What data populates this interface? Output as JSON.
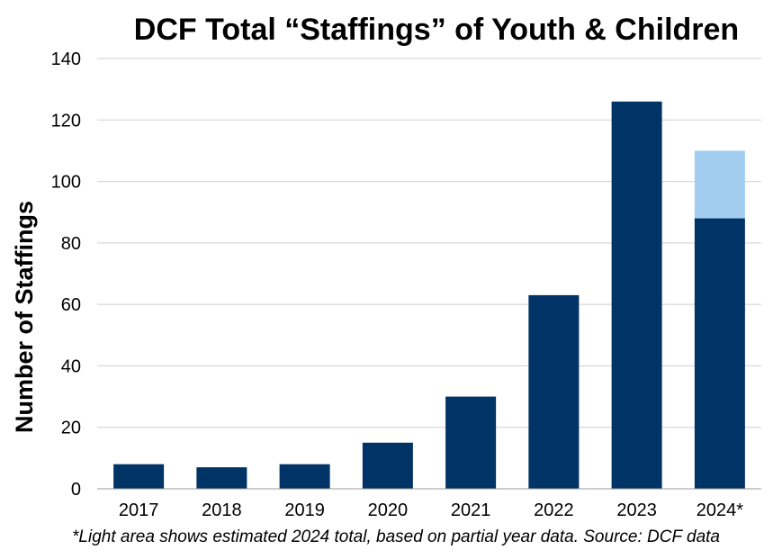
{
  "chart_data": {
    "type": "bar",
    "title": "DCF Total “Staffings” of Youth & Children",
    "xlabel": "",
    "ylabel": "Number of Staffings",
    "categories": [
      "2017",
      "2018",
      "2019",
      "2020",
      "2021",
      "2022",
      "2023",
      "2024*"
    ],
    "series": [
      {
        "values": [
          8,
          7,
          8,
          15,
          30,
          63,
          126,
          88
        ],
        "color": "#003366"
      },
      {
        "values": [
          0,
          0,
          0,
          0,
          0,
          0,
          0,
          22
        ],
        "color": "#A3CDF0"
      }
    ],
    "stacked": true,
    "ylim": [
      0,
      140
    ],
    "yticks": [
      "0",
      "20",
      "40",
      "60",
      "80",
      "100",
      "120",
      "140"
    ],
    "grid": true,
    "legend": "none",
    "footnote": "*Light area shows estimated 2024 total, based on partial year data. Source: DCF data"
  }
}
